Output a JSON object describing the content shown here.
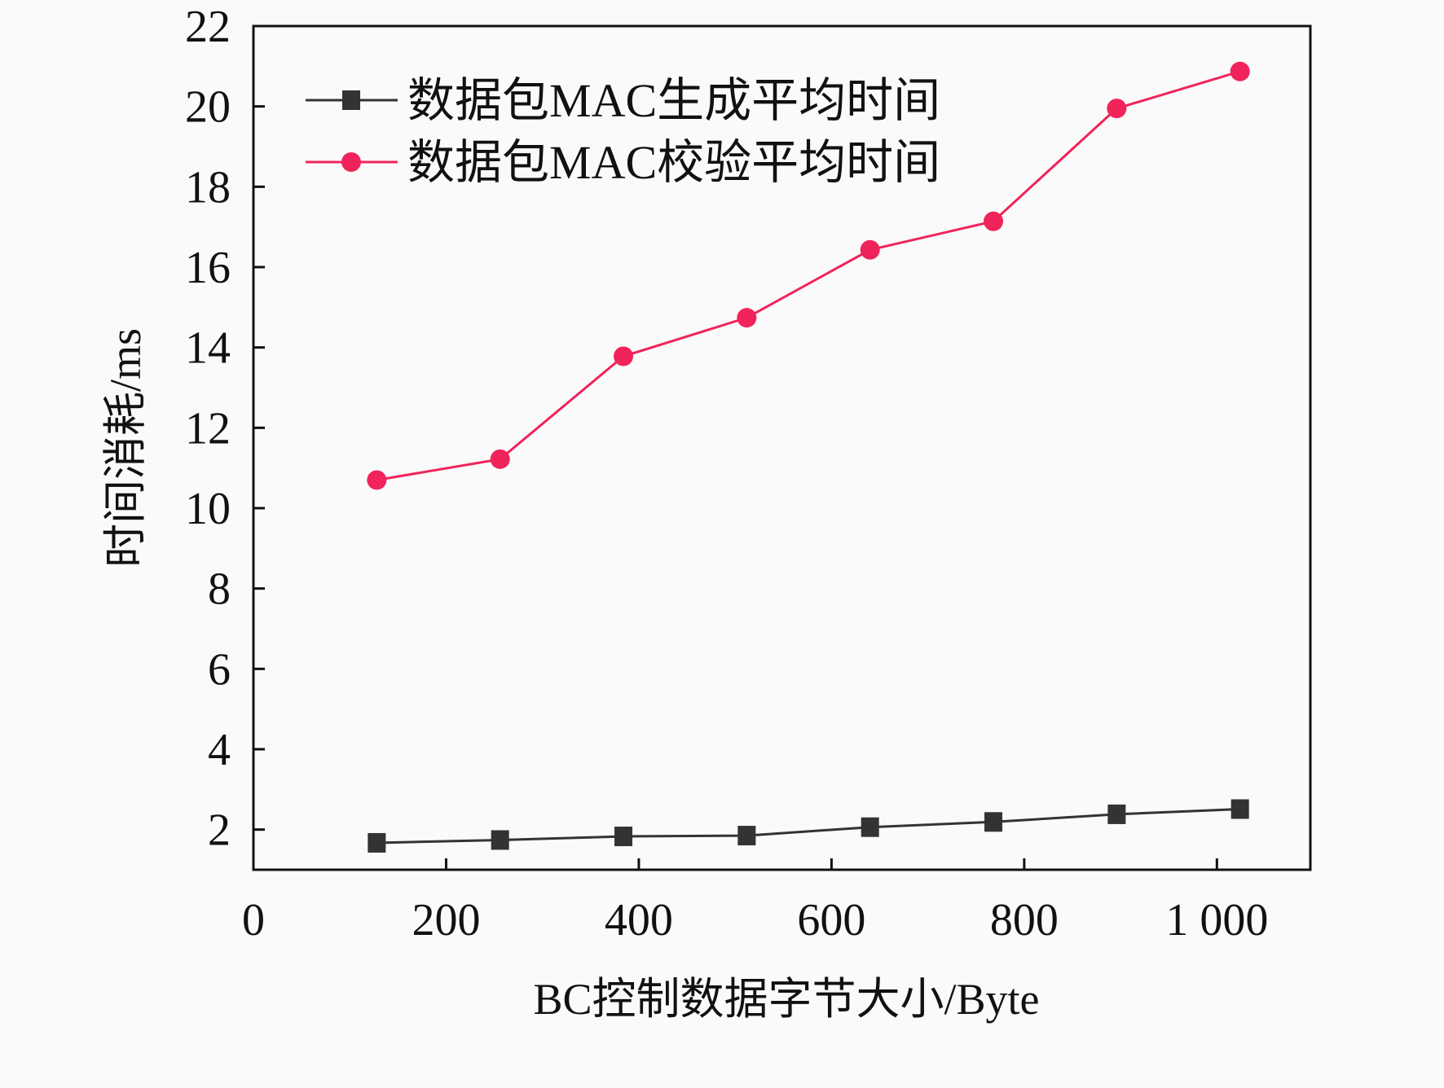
{
  "chart_data": {
    "type": "line",
    "title": "",
    "xlabel": "BC控制数据字节大小/Byte",
    "ylabel": "时间消耗/ms",
    "xlim": [
      0,
      1097
    ],
    "ylim": [
      1,
      22
    ],
    "xticks": [
      0,
      200,
      400,
      600,
      800,
      1000
    ],
    "xtick_labels": [
      "0",
      "200",
      "400",
      "600",
      "800",
      "1 000"
    ],
    "yticks": [
      2,
      4,
      6,
      8,
      10,
      12,
      14,
      16,
      18,
      20,
      22
    ],
    "ytick_labels": [
      "2",
      "4",
      "6",
      "8",
      "10",
      "12",
      "14",
      "16",
      "18",
      "20",
      "22"
    ],
    "grid": false,
    "legend_position": "top-left",
    "x": [
      128,
      256,
      384,
      512,
      640,
      768,
      896,
      1024
    ],
    "series": [
      {
        "name": "数据包MAC生成平均时间",
        "marker": "square",
        "color": "#333333",
        "values": [
          1.67,
          1.74,
          1.83,
          1.85,
          2.06,
          2.19,
          2.38,
          2.51
        ]
      },
      {
        "name": "数据包MAC校验平均时间",
        "marker": "circle",
        "color": "#f0245a",
        "values": [
          10.7,
          11.22,
          13.78,
          14.74,
          16.43,
          17.14,
          19.95,
          20.87
        ]
      }
    ]
  }
}
